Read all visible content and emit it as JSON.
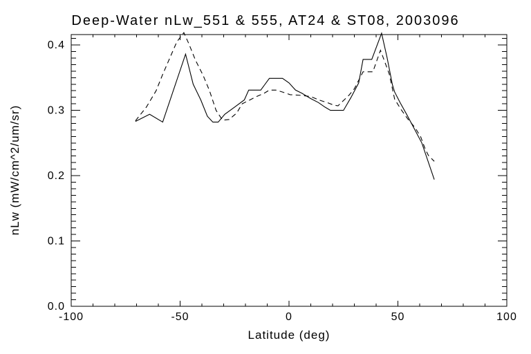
{
  "figure": {
    "background_color": "#ffffff",
    "ink_color": "#000000"
  },
  "chart_data": {
    "type": "line",
    "title": "Deep-Water nLw_551 & 555, AT24 & ST08, 2003096",
    "xlabel": "Latitude (deg)",
    "ylabel": "nLw (mW/cm^2/um/sr)",
    "xlim": [
      -100,
      100
    ],
    "ylim": [
      0,
      0.416
    ],
    "x_ticks": [
      -100,
      -50,
      0,
      50,
      100
    ],
    "x_tick_labels": [
      "-100",
      "-50",
      "0",
      "50",
      "100"
    ],
    "x_minor_step": 10,
    "y_ticks": [
      0,
      0.1,
      0.2,
      0.3,
      0.4
    ],
    "y_tick_labels": [
      "0.0",
      "0.1",
      "0.2",
      "0.3",
      "0.4"
    ],
    "y_minor_step": 0.01,
    "grid": false,
    "legend_position": "none",
    "series": [
      {
        "name": "solid",
        "line_style": "solid",
        "points": [
          [
            -70.5,
            0.283
          ],
          [
            -64,
            0.294
          ],
          [
            -58,
            0.282
          ],
          [
            -47.5,
            0.386
          ],
          [
            -44,
            0.34
          ],
          [
            -40.5,
            0.316
          ],
          [
            -37.5,
            0.291
          ],
          [
            -35,
            0.282
          ],
          [
            -32.5,
            0.282
          ],
          [
            -29.5,
            0.294
          ],
          [
            -25,
            0.305
          ],
          [
            -20.5,
            0.316
          ],
          [
            -18.5,
            0.331
          ],
          [
            -13,
            0.331
          ],
          [
            -9,
            0.349
          ],
          [
            -3,
            0.349
          ],
          [
            0,
            0.342
          ],
          [
            3,
            0.331
          ],
          [
            6,
            0.326
          ],
          [
            10,
            0.318
          ],
          [
            13.5,
            0.312
          ],
          [
            16.5,
            0.305
          ],
          [
            19,
            0.3
          ],
          [
            25,
            0.3
          ],
          [
            28.5,
            0.32
          ],
          [
            32,
            0.342
          ],
          [
            34,
            0.378
          ],
          [
            38,
            0.378
          ],
          [
            42.5,
            0.418
          ],
          [
            45,
            0.381
          ],
          [
            47.5,
            0.339
          ],
          [
            48.5,
            0.328
          ],
          [
            51,
            0.312
          ],
          [
            54,
            0.294
          ],
          [
            57.5,
            0.272
          ],
          [
            61,
            0.25
          ],
          [
            66.7,
            0.194
          ]
        ]
      },
      {
        "name": "dashed",
        "line_style": "dashed",
        "points": [
          [
            -70.5,
            0.284
          ],
          [
            -65.5,
            0.305
          ],
          [
            -61,
            0.33
          ],
          [
            -58,
            0.355
          ],
          [
            -51.5,
            0.405
          ],
          [
            -48.3,
            0.419
          ],
          [
            -46,
            0.402
          ],
          [
            -43,
            0.377
          ],
          [
            -39.5,
            0.354
          ],
          [
            -36.5,
            0.33
          ],
          [
            -33.5,
            0.3
          ],
          [
            -30.5,
            0.285
          ],
          [
            -27.5,
            0.286
          ],
          [
            -24,
            0.296
          ],
          [
            -21.5,
            0.31
          ],
          [
            -18.5,
            0.315
          ],
          [
            -15,
            0.321
          ],
          [
            -11.5,
            0.326
          ],
          [
            -9,
            0.331
          ],
          [
            -6,
            0.331
          ],
          [
            -3,
            0.328
          ],
          [
            0.5,
            0.324
          ],
          [
            5.5,
            0.323
          ],
          [
            10,
            0.321
          ],
          [
            14.5,
            0.315
          ],
          [
            17.5,
            0.312
          ],
          [
            20.5,
            0.308
          ],
          [
            22.5,
            0.307
          ],
          [
            27.5,
            0.323
          ],
          [
            30,
            0.333
          ],
          [
            34,
            0.359
          ],
          [
            38.5,
            0.359
          ],
          [
            42,
            0.392
          ],
          [
            46,
            0.356
          ],
          [
            48.5,
            0.317
          ],
          [
            51.5,
            0.301
          ],
          [
            54.5,
            0.287
          ],
          [
            58,
            0.273
          ],
          [
            60.5,
            0.259
          ],
          [
            62.5,
            0.241
          ],
          [
            64,
            0.231
          ],
          [
            66.7,
            0.222
          ]
        ]
      }
    ]
  }
}
